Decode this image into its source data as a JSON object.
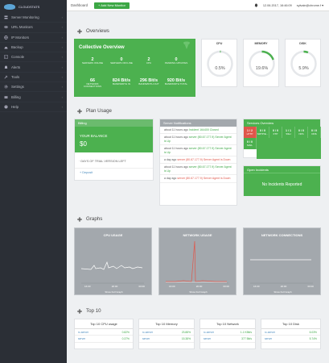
{
  "logo": {
    "text": "CLOUDSTATS"
  },
  "sidebar": {
    "items": [
      {
        "label": "Server Monitoring",
        "icon": "server-icon"
      },
      {
        "label": "URL Monitors",
        "icon": "link-icon"
      },
      {
        "label": "IP Monitors",
        "icon": "ip-icon"
      },
      {
        "label": "Backup",
        "icon": "backup-icon"
      },
      {
        "label": "Console",
        "icon": "terminal-icon"
      },
      {
        "label": "Alerts",
        "icon": "bell-icon"
      },
      {
        "label": "Tools",
        "icon": "wrench-icon"
      },
      {
        "label": "Settings",
        "icon": "gear-icon"
      },
      {
        "label": "Billing",
        "icon": "card-icon"
      },
      {
        "label": "Help",
        "icon": "help-icon"
      }
    ]
  },
  "topbar": {
    "title": "Dashboard",
    "add_label": "+ Add New Monitor",
    "datetime": "12.06.2017, 16:46:09",
    "user": "sylvain@chrome.f"
  },
  "overview": {
    "title": "Overviews",
    "collective_title": "Collective Overview",
    "stats_row1": [
      {
        "value": "2",
        "label": "SERVERS ONLINE"
      },
      {
        "value": "0",
        "label": "SERVERS OFFLINE"
      },
      {
        "value": "2",
        "label": "CPU"
      },
      {
        "value": "0",
        "label": "PENDING UPDATES"
      }
    ],
    "stats_row2": [
      {
        "value": "66",
        "label": "NETWORK CONNECTIONS"
      },
      {
        "value": "824 Bit/s",
        "label": "BANDWIDTH IN"
      },
      {
        "value": "296 Bit/s",
        "label": "BANDWIDTH OUT"
      },
      {
        "value": "920 Bit/s",
        "label": "BANDWIDTH TOTAL"
      }
    ],
    "gauges": [
      {
        "title": "CPU",
        "value": "0.5%",
        "fraction": 0.005,
        "color": "#4cb14f"
      },
      {
        "title": "MEMORY",
        "value": "19.6%",
        "fraction": 0.196,
        "color": "#4cb14f"
      },
      {
        "title": "DISK",
        "value": "5.9%",
        "fraction": 0.059,
        "color": "#4cb14f"
      }
    ]
  },
  "plan": {
    "title": "Plan Usage",
    "billing_title": "Billing",
    "balance_label": "YOUR BALANCE",
    "balance_value": "$0",
    "trial_text": "· DAYS OF TRIAL VERSION LEFT",
    "deposit_label": "Deposit"
  },
  "notifications": {
    "title": "Server Notifications",
    "items": [
      {
        "time": "about 11 hours ago",
        "text": "Incident 164400 Closed",
        "status": "ok"
      },
      {
        "time": "about 11 hours ago",
        "text": "server (80.67.177.9) Server Agent is Up",
        "status": "ok"
      },
      {
        "time": "about 11 hours ago",
        "text": "server (80.67.177.9) Server Agent is Up",
        "status": "ok"
      },
      {
        "time": "a day ago",
        "text": "server (80.67.177.9) Server Agent is Down",
        "status": "down"
      },
      {
        "time": "about 11 hours ago",
        "text": "server (80.67.177.9) Server Agent is Up",
        "status": "ok"
      },
      {
        "time": "a day ago",
        "text": "server (80.67.177.9) Server Agent is Down",
        "status": "down"
      }
    ]
  },
  "services": {
    "title": "Services Overview",
    "cells": [
      {
        "value": "1 / 2",
        "label": "HTTP",
        "red": true
      },
      {
        "value": "0 / 0",
        "label": "SMTP/E...",
        "red": false
      },
      {
        "value": "0 / 0",
        "label": "FTP",
        "red": false
      },
      {
        "value": "1 / 1",
        "label": "SSH",
        "red": false
      },
      {
        "value": "0 / 0",
        "label": "NFS",
        "red": false
      },
      {
        "value": "0 / 0",
        "label": "DNS",
        "red": false
      },
      {
        "value": "0 / 0",
        "label": "MAIL",
        "red": false
      }
    ],
    "incidents_title": "Open Incidents",
    "incidents_text": "No Incidents Reported"
  },
  "graphs": {
    "title": "Graphs",
    "items": [
      {
        "title": "CPU USAGE",
        "ticks": [
          "16:00",
          "20:00",
          "00:00"
        ],
        "footer": "Show Full Graph"
      },
      {
        "title": "NETWORK USAGE",
        "ticks": [
          "16:00",
          "20:00",
          "00:00"
        ],
        "footer": "Show Full Graph"
      },
      {
        "title": "NETWORK CONNECTIONS",
        "ticks": [
          "16:00",
          "20:00",
          "00:00"
        ],
        "footer": "Show Full Graph"
      }
    ]
  },
  "top10": {
    "title": "Top 10",
    "cards": [
      {
        "title": "Top 10 CPU usage",
        "rows": [
          {
            "name": "rc-server",
            "value": "0.82%"
          },
          {
            "name": "server",
            "value": "0.37%"
          }
        ]
      },
      {
        "title": "Top 10 Memory",
        "rows": [
          {
            "name": "rc-server",
            "value": "23.88%"
          },
          {
            "name": "server",
            "value": "15.38%"
          }
        ]
      },
      {
        "title": "Top 10 Network",
        "rows": [
          {
            "name": "rc-server",
            "value": "1.1 KBit/s"
          },
          {
            "name": "server",
            "value": "377 Bit/s"
          }
        ]
      },
      {
        "title": "Top 10 Disk",
        "rows": [
          {
            "name": "rc-server",
            "value": "6.03%"
          },
          {
            "name": "server",
            "value": "5.74%"
          }
        ]
      }
    ]
  }
}
